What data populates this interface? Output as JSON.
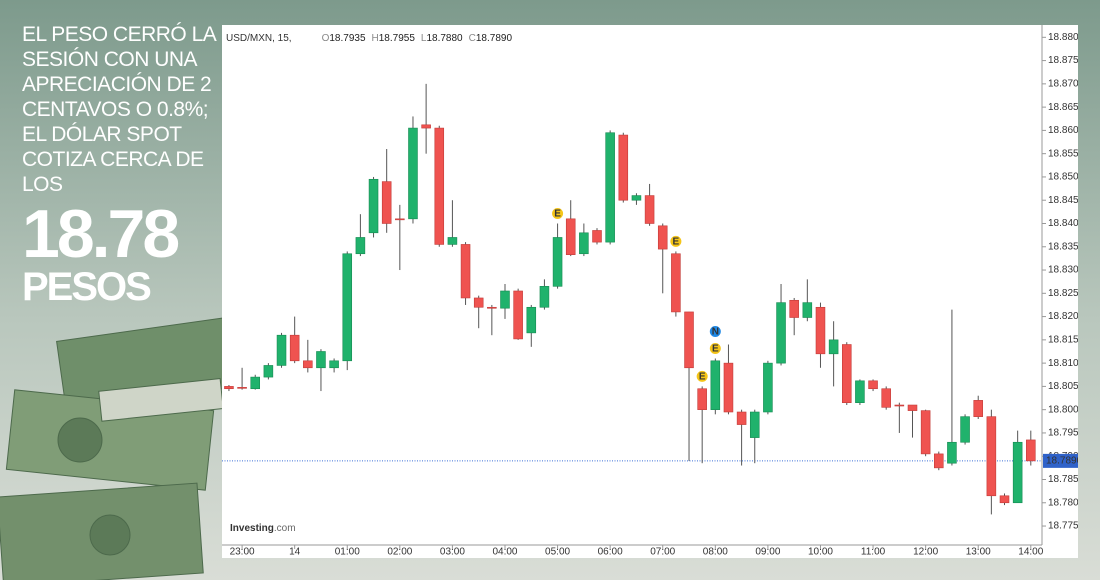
{
  "side_panel": {
    "headline": "EL PESO CERRÓ LA SESIÓN CON UNA APRECIACIÓN DE 2 CENTAVOS O 0.8%; EL DÓLAR SPOT COTIZA CERCA DE LOS",
    "price": "18.78",
    "unit": "PESOS"
  },
  "chart_data": {
    "type": "candlestick",
    "symbol": "USD/MXN, 15,",
    "ohlc_header": [
      {
        "key": "O",
        "text": "18.7935"
      },
      {
        "key": "H",
        "text": "18.7955"
      },
      {
        "key": "L",
        "text": "18.7880"
      },
      {
        "key": "C",
        "text": "18.7890"
      }
    ],
    "logo": "Investing",
    "logo_suffix": ".com",
    "open": [
      18.805,
      18.8048,
      18.8045,
      18.807,
      18.8095,
      18.816,
      18.8105,
      18.809,
      18.809,
      18.8105,
      18.8335,
      18.838,
      18.849,
      18.841,
      18.841,
      18.8612,
      18.8605,
      18.8355,
      18.8355,
      18.824,
      18.822,
      18.8218,
      18.8255,
      18.8165,
      18.822,
      18.8265,
      18.841,
      18.8335,
      18.8385,
      18.836,
      18.859,
      18.845,
      18.846,
      18.8395,
      18.8335,
      18.821,
      18.8045,
      18.8,
      18.81,
      18.7995,
      18.794,
      18.7995,
      18.81,
      18.8235,
      18.8198,
      18.822,
      18.812,
      18.814,
      18.8015,
      18.8062,
      18.8045,
      18.801,
      18.801,
      18.7998,
      18.7905,
      18.7885,
      18.793,
      18.802,
      18.7985,
      18.7815,
      18.78,
      18.7935
    ],
    "high": [
      18.8053,
      18.809,
      18.8075,
      18.81,
      18.8165,
      18.82,
      18.815,
      18.813,
      18.811,
      18.834,
      18.842,
      18.85,
      18.856,
      18.844,
      18.863,
      18.87,
      18.861,
      18.845,
      18.836,
      18.8245,
      18.8225,
      18.827,
      18.826,
      18.8225,
      18.828,
      18.84,
      18.845,
      18.84,
      18.839,
      18.86,
      18.8595,
      18.8465,
      18.8485,
      18.84,
      18.834,
      18.821,
      18.805,
      18.811,
      18.814,
      18.8,
      18.8,
      18.8105,
      18.827,
      18.824,
      18.828,
      18.823,
      18.819,
      18.8145,
      18.8065,
      18.8065,
      18.805,
      18.8015,
      18.801,
      18.8,
      18.791,
      18.8215,
      18.799,
      18.803,
      18.8,
      18.782,
      18.7955,
      18.7955
    ],
    "low": [
      18.804,
      18.8043,
      18.8043,
      18.8065,
      18.809,
      18.81,
      18.808,
      18.804,
      18.808,
      18.8085,
      18.833,
      18.837,
      18.838,
      18.83,
      18.84,
      18.855,
      18.835,
      18.835,
      18.8225,
      18.8175,
      18.816,
      18.8195,
      18.815,
      18.8135,
      18.8215,
      18.826,
      18.833,
      18.833,
      18.8355,
      18.8355,
      18.8445,
      18.844,
      18.8395,
      18.825,
      18.82,
      18.789,
      18.7885,
      18.799,
      18.799,
      18.788,
      18.7885,
      18.799,
      18.8095,
      18.816,
      18.819,
      18.809,
      18.805,
      18.801,
      18.801,
      18.804,
      18.8,
      18.795,
      18.794,
      18.79,
      18.787,
      18.788,
      18.7925,
      18.798,
      18.7775,
      18.7795,
      18.78,
      18.788
    ],
    "close": [
      18.8045,
      18.8046,
      18.807,
      18.8095,
      18.816,
      18.8105,
      18.809,
      18.8125,
      18.8105,
      18.8335,
      18.837,
      18.8495,
      18.84,
      18.8408,
      18.8605,
      18.8605,
      18.8355,
      18.837,
      18.824,
      18.822,
      18.8218,
      18.8255,
      18.8152,
      18.822,
      18.8265,
      18.837,
      18.8333,
      18.838,
      18.836,
      18.8595,
      18.845,
      18.846,
      18.84,
      18.8345,
      18.821,
      18.809,
      18.8,
      18.8105,
      18.7995,
      18.7968,
      18.7995,
      18.81,
      18.823,
      18.8198,
      18.823,
      18.812,
      18.815,
      18.8015,
      18.8062,
      18.8045,
      18.8005,
      18.8008,
      18.7998,
      18.7905,
      18.7875,
      18.793,
      18.7985,
      18.7985,
      18.7815,
      18.78,
      18.793,
      18.789
    ],
    "up_color": "#20b26c",
    "down_color": "#ef5350",
    "events": [
      {
        "text": "E",
        "at": 25
      },
      {
        "text": "E",
        "at": 34
      },
      {
        "text": "E",
        "at": 36
      },
      {
        "text": "E",
        "at": 37
      },
      {
        "text": "N",
        "at": 37
      }
    ],
    "last_price": {
      "value": 18.789,
      "label": "18.7890"
    },
    "xlim": [
      -0.3,
      61.7
    ],
    "xticks": [
      {
        "value": 1,
        "label": "23:00"
      },
      {
        "value": 5,
        "label": "14"
      },
      {
        "value": 9,
        "label": "01:00"
      },
      {
        "value": 13,
        "label": "02:00"
      },
      {
        "value": 17,
        "label": "03:00"
      },
      {
        "value": 21,
        "label": "04:00"
      },
      {
        "value": 25,
        "label": "05:00"
      },
      {
        "value": 29,
        "label": "06:00"
      },
      {
        "value": 33,
        "label": "07:00"
      },
      {
        "value": 37,
        "label": "08:00"
      },
      {
        "value": 41,
        "label": "09:00"
      },
      {
        "value": 45,
        "label": "10:00"
      },
      {
        "value": 49,
        "label": "11:00"
      },
      {
        "value": 53,
        "label": "12:00"
      },
      {
        "value": 57,
        "label": "13:00"
      },
      {
        "value": 61,
        "label": "14:00"
      }
    ],
    "ylim": [
      18.772,
      18.882
    ],
    "yticks": [
      {
        "value": 18.775,
        "label": "18.7750"
      },
      {
        "value": 18.78,
        "label": "18.7800"
      },
      {
        "value": 18.785,
        "label": "18.7850"
      },
      {
        "value": 18.79,
        "label": "18.7900"
      },
      {
        "value": 18.795,
        "label": "18.7950"
      },
      {
        "value": 18.8,
        "label": "18.8000"
      },
      {
        "value": 18.805,
        "label": "18.8050"
      },
      {
        "value": 18.81,
        "label": "18.8100"
      },
      {
        "value": 18.815,
        "label": "18.8150"
      },
      {
        "value": 18.82,
        "label": "18.8200"
      },
      {
        "value": 18.825,
        "label": "18.8250"
      },
      {
        "value": 18.83,
        "label": "18.8300"
      },
      {
        "value": 18.835,
        "label": "18.8350"
      },
      {
        "value": 18.84,
        "label": "18.8400"
      },
      {
        "value": 18.845,
        "label": "18.8450"
      },
      {
        "value": 18.85,
        "label": "18.8500"
      },
      {
        "value": 18.855,
        "label": "18.8550"
      },
      {
        "value": 18.86,
        "label": "18.8600"
      },
      {
        "value": 18.865,
        "label": "18.8650"
      },
      {
        "value": 18.87,
        "label": "18.8700"
      },
      {
        "value": 18.875,
        "label": "18.8750"
      },
      {
        "value": 18.88,
        "label": "18.8800"
      }
    ],
    "grid": false
  }
}
